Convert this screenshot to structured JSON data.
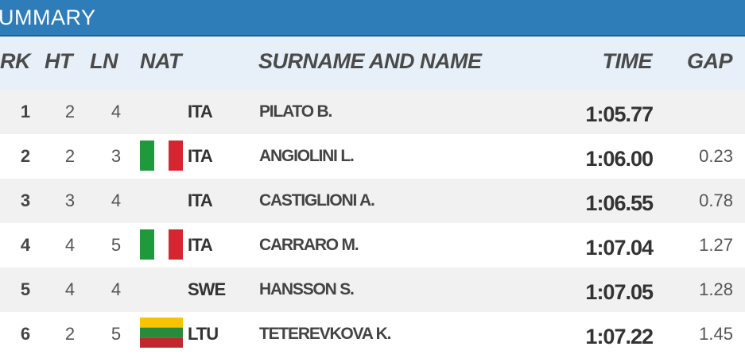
{
  "title": "UMMARY",
  "table": {
    "columns": [
      "RK",
      "HT",
      "LN",
      "NAT",
      "SURNAME AND NAME",
      "TIME",
      "GAP"
    ],
    "rows": [
      {
        "rk": "1",
        "ht": "2",
        "ln": "4",
        "nat": "ITA",
        "name": "PILATO B.",
        "time": "1:05.77"
      },
      {
        "rk": "2",
        "ht": "2",
        "ln": "3",
        "nat": "ITA",
        "name": "ANGIOLINI L.",
        "time": "1:06.00",
        "gap": "0.23"
      },
      {
        "rk": "3",
        "ht": "3",
        "ln": "4",
        "nat": "ITA",
        "name": "CASTIGLIONI A.",
        "time": "1:06.55",
        "gap": "0.78"
      },
      {
        "rk": "4",
        "ht": "4",
        "ln": "5",
        "nat": "ITA",
        "name": "CARRARO M.",
        "time": "1:07.04",
        "gap": "1.27"
      },
      {
        "rk": "5",
        "ht": "4",
        "ln": "4",
        "nat": "SWE",
        "name": "HANSSON S.",
        "time": "1:07.05",
        "gap": "1.28"
      },
      {
        "rk": "6",
        "ht": "2",
        "ln": "5",
        "nat": "LTU",
        "name": "TETEREVKOVA K.",
        "time": "1:07.22",
        "gap": "1.45"
      }
    ]
  }
}
